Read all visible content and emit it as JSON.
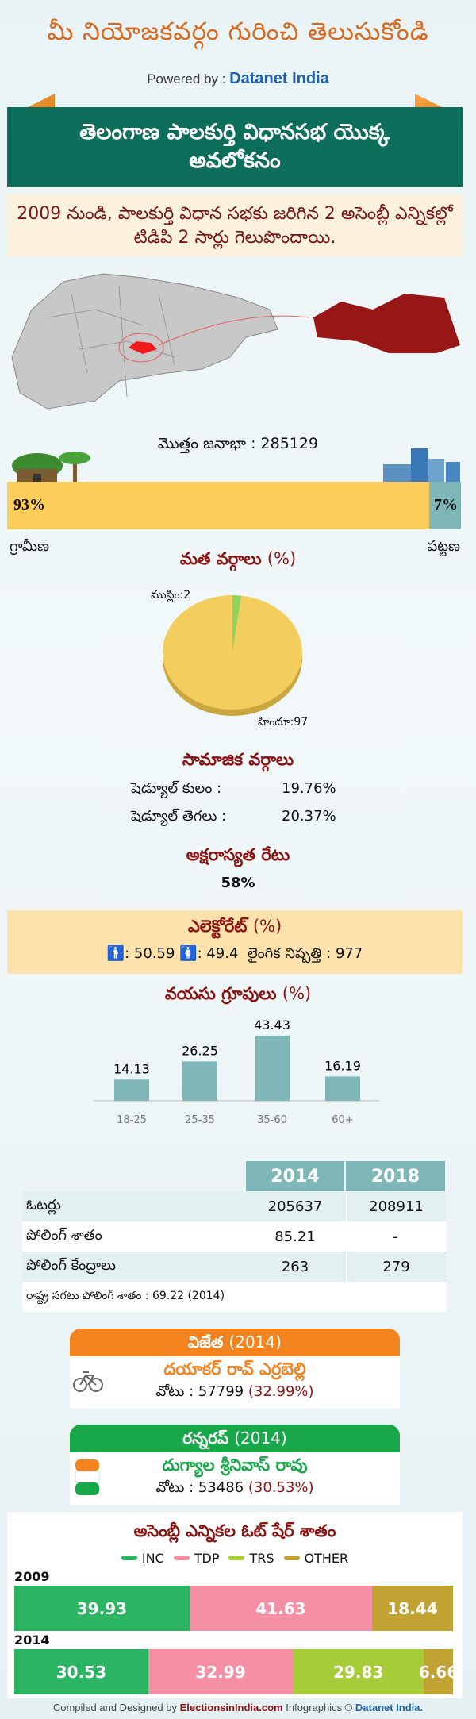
{
  "header": {
    "title": "మీ నియోజకవర్గం గురించి తెలుసుకోండి",
    "powered_prefix": "Powered by :",
    "powered_brand": "Datanet India"
  },
  "banner": {
    "title": "తెలంగాణ పాలకుర్తి విధానసభ యొక్క అవలోకనం"
  },
  "summary": "2009 నుండి, పాలకుర్తి విధాన సభకు జరిగిన 2 అసెంబ్లీ ఎన్నికల్లో టిడిపి 2 సార్లు గెలుపొందాయి.",
  "population": {
    "label": "మొత్తం జనాభా : 285129",
    "rural_pct": 93,
    "urban_pct": 7,
    "rural_text": "93%",
    "urban_text": "7%",
    "rural_label": "గ్రామీణ",
    "urban_label": "పట్టణ"
  },
  "religion": {
    "title": "మత వర్గాలు",
    "unit": "(%)",
    "muslim_label": "ముస్లిం:2",
    "hindu_label": "హిందూ:97",
    "colors": {
      "hindu": "#f3ce5e",
      "muslim": "#8fd460"
    }
  },
  "social": {
    "title": "సామాజిక వర్గాలు",
    "sc_label": "షెడ్యూల్ కులం :",
    "sc_value": "19.76%",
    "st_label": "షెడ్యూల్ తెగలు :",
    "st_value": "20.37%"
  },
  "literacy": {
    "title": "అక్షరాస్యత రేటు",
    "value": "58%"
  },
  "electorate": {
    "title": "ఎలెక్టోరేట్",
    "unit": "(%)",
    "male": ": 50.59",
    "female": ": 49.4",
    "sex_ratio": "లైంగిక నిష్పత్తి : 977"
  },
  "chart_data": {
    "type": "bar",
    "title": "వయసు గ్రూపులు",
    "unit": "(%)",
    "categories": [
      "18-25",
      "25-35",
      "35-60",
      "60+"
    ],
    "values": [
      14.13,
      26.25,
      43.43,
      16.19
    ],
    "value_labels": [
      "14.13",
      "26.25",
      "43.43",
      "16.19"
    ],
    "color": "#7fb7b8"
  },
  "table": {
    "headers": [
      "2014",
      "2018"
    ],
    "rows": [
      {
        "label": "ఓటర్లు",
        "v2014": "205637",
        "v2018": "208911"
      },
      {
        "label": "పోలింగ్ శాతం",
        "v2014": "85.21",
        "v2018": "-"
      },
      {
        "label": "పోలింగ్ కేంద్రాలు",
        "v2014": "263",
        "v2018": "279"
      }
    ],
    "note": "రాష్ట్ర సగటు పోలింగ్ శాతం : 69.22 (2014)"
  },
  "winner": {
    "title": "విజేత",
    "year": "(2014)",
    "name": "దయాకర్ రావ్ ఎర్రబెల్లి",
    "votes": "వోటు : 57799",
    "pct": "(32.99%)",
    "icon": "bicycle-icon"
  },
  "runnerup": {
    "title": "రన్నరప్",
    "year": "(2014)",
    "name": "దుగ్యాల శ్రీనివాస్ రావు",
    "votes": "వోటు : 53486",
    "pct": "(30.53%)",
    "icon": "hand-icon"
  },
  "vote_share": {
    "title": "అసెంబ్లీ ఎన్నికల ఓట్ షేర్ శాతం",
    "legend": [
      {
        "name": "INC",
        "color": "#2bb462"
      },
      {
        "name": "TDP",
        "color": "#f48fa4"
      },
      {
        "name": "TRS",
        "color": "#a6cd37"
      },
      {
        "name": "OTHER",
        "color": "#c3a234"
      }
    ],
    "years": [
      {
        "year": "2009",
        "segments": [
          {
            "party": "INC",
            "value": 39.93,
            "label": "39.93"
          },
          {
            "party": "TDP",
            "value": 41.63,
            "label": "41.63"
          },
          {
            "party": "OTHER",
            "value": 18.44,
            "label": "18.44"
          }
        ]
      },
      {
        "year": "2014",
        "segments": [
          {
            "party": "INC",
            "value": 30.53,
            "label": "30.53"
          },
          {
            "party": "TDP",
            "value": 32.99,
            "label": "32.99"
          },
          {
            "party": "TRS",
            "value": 29.83,
            "label": "29.83"
          },
          {
            "party": "OTHER",
            "value": 6.66,
            "label": "6.66"
          }
        ]
      }
    ]
  },
  "footer": {
    "prefix": "Compiled and Designed by",
    "brand1": "ElectionsinIndia.com",
    "middle": "Infographics ©",
    "brand2": "Datanet India."
  }
}
